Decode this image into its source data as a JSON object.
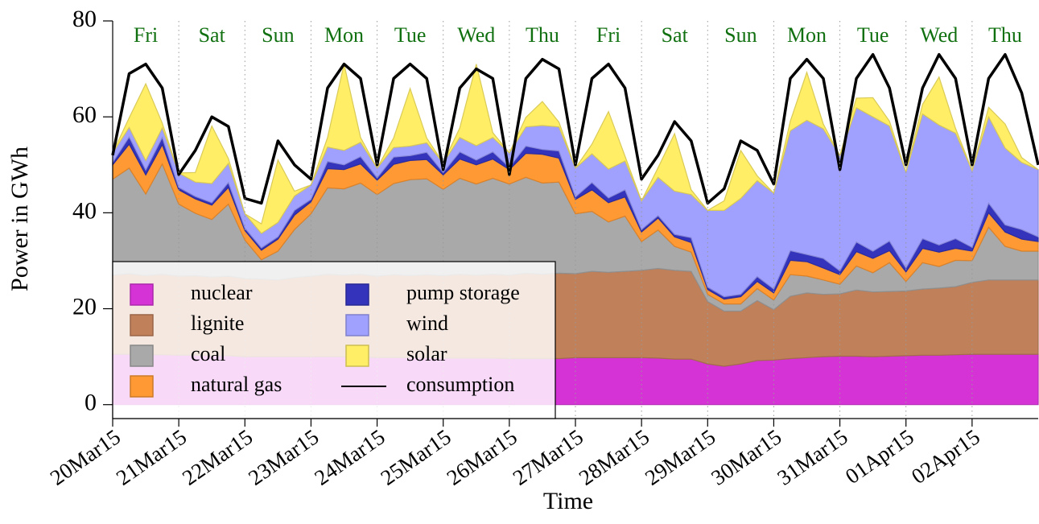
{
  "chart_data": {
    "type": "stacked_area",
    "xlabel": "Time",
    "ylabel": "Power in GWh",
    "day_labels": [
      "Fri",
      "Sat",
      "Sun",
      "Mon",
      "Tue",
      "Wed",
      "Thu",
      "Fri",
      "Sat",
      "Sun",
      "Mon",
      "Tue",
      "Wed",
      "Thu"
    ],
    "x": [
      0,
      0.25,
      0.5,
      0.75,
      1,
      1.25,
      1.5,
      1.75,
      2,
      2.25,
      2.5,
      2.75,
      3,
      3.25,
      3.5,
      3.75,
      4,
      4.25,
      4.5,
      4.75,
      5,
      5.25,
      5.5,
      5.75,
      6,
      6.25,
      6.5,
      6.75,
      7,
      7.25,
      7.5,
      7.75,
      8,
      8.25,
      8.5,
      8.75,
      9,
      9.25,
      9.5,
      9.75,
      10,
      10.25,
      10.5,
      10.75,
      11,
      11.25,
      11.5,
      11.75,
      12,
      12.25,
      12.5,
      12.75,
      13,
      13.25,
      13.5,
      13.75,
      14
    ],
    "xlim": [
      0,
      14
    ],
    "xticks": [
      {
        "value": 0,
        "label": "20Mar15"
      },
      {
        "value": 1,
        "label": "21Mar15"
      },
      {
        "value": 2,
        "label": "22Mar15"
      },
      {
        "value": 3,
        "label": "23Mar15"
      },
      {
        "value": 4,
        "label": "24Mar15"
      },
      {
        "value": 5,
        "label": "25Mar15"
      },
      {
        "value": 6,
        "label": "26Mar15"
      },
      {
        "value": 7,
        "label": "27Mar15"
      },
      {
        "value": 8,
        "label": "28Mar15"
      },
      {
        "value": 9,
        "label": "29Mar15"
      },
      {
        "value": 10,
        "label": "30Mar15"
      },
      {
        "value": 11,
        "label": "31Mar15"
      },
      {
        "value": 12,
        "label": "01Apr15"
      },
      {
        "value": 13,
        "label": "02Apr15"
      }
    ],
    "ylim": [
      -2.9,
      80
    ],
    "yticks": [
      0,
      20,
      40,
      60,
      80
    ],
    "grid": true,
    "legend_position": "lower left",
    "series": [
      {
        "name": "nuclear",
        "color": "#d633d6",
        "values": [
          10.5,
          10.5,
          10.4,
          10.4,
          10.3,
          10.3,
          10.2,
          10.2,
          10.0,
          10.0,
          10.0,
          10.0,
          10.0,
          10.0,
          10.0,
          10.0,
          9.8,
          9.8,
          9.8,
          9.8,
          9.7,
          9.7,
          9.7,
          9.7,
          9.6,
          9.6,
          9.6,
          9.6,
          9.8,
          9.8,
          9.8,
          9.8,
          9.8,
          9.7,
          9.5,
          9.5,
          8.5,
          8.0,
          8.5,
          9.2,
          9.3,
          9.6,
          9.8,
          10.0,
          10.1,
          10.1,
          10.0,
          10.1,
          10.2,
          10.3,
          10.3,
          10.4,
          10.5,
          10.5,
          10.5,
          10.5,
          10.5
        ]
      },
      {
        "name": "lignite",
        "color": "#c0805a",
        "values": [
          16.5,
          16.8,
          16.5,
          16.8,
          16.5,
          16.6,
          16.4,
          16.6,
          16.3,
          16.2,
          16.0,
          16.5,
          16.8,
          17.2,
          17.0,
          17.2,
          17.0,
          17.3,
          17.1,
          17.3,
          17.2,
          17.5,
          17.3,
          17.5,
          17.4,
          17.8,
          17.6,
          17.8,
          17.5,
          18.0,
          17.8,
          18.0,
          18.2,
          18.7,
          18.5,
          18.3,
          13.0,
          11.5,
          11.0,
          12.5,
          10.5,
          13.0,
          13.5,
          13.0,
          13.0,
          13.8,
          13.5,
          13.5,
          13.5,
          13.8,
          14.0,
          14.2,
          15.0,
          15.5,
          15.5,
          15.5,
          15.5
        ]
      },
      {
        "name": "coal",
        "color": "#a9a9a9",
        "values": [
          20,
          22,
          17,
          23,
          15,
          13,
          12,
          15,
          8,
          4,
          6,
          10,
          13,
          18,
          18,
          19,
          17,
          19,
          20,
          20,
          18,
          20,
          19,
          20,
          19,
          20,
          19,
          19,
          12.5,
          12.5,
          10.5,
          11.5,
          6,
          8,
          5,
          4,
          1.5,
          1.5,
          1.5,
          2.5,
          2,
          4.5,
          3.5,
          3,
          2,
          5,
          4,
          6,
          2,
          5.5,
          4.5,
          5.5,
          4.5,
          11,
          7,
          6,
          6
        ]
      },
      {
        "name": "natural gas",
        "color": "#ff9933",
        "values": [
          3,
          5,
          4,
          4,
          3,
          3,
          3,
          3.5,
          2,
          2,
          2.5,
          3,
          2.5,
          4,
          4,
          4,
          3,
          4,
          4,
          4,
          3,
          4,
          4,
          4,
          3,
          5,
          6,
          5,
          3,
          4.5,
          4,
          4,
          2,
          2.5,
          2,
          2,
          1,
          1,
          1.5,
          1.5,
          1.5,
          3,
          3,
          2.5,
          2,
          3,
          3,
          2.5,
          2,
          3,
          3,
          2.5,
          2,
          3,
          3,
          2.5,
          2
        ]
      },
      {
        "name": "pump storage",
        "color": "#3333bb",
        "values": [
          0.5,
          1.5,
          1,
          1.5,
          0.5,
          0.5,
          0.5,
          1,
          0.5,
          0.5,
          0.5,
          1,
          0.5,
          1.5,
          1,
          1.5,
          0.5,
          1.5,
          1,
          1.5,
          0.5,
          1.5,
          1,
          1.5,
          0.5,
          1.5,
          1,
          1.5,
          0.5,
          1.5,
          1,
          1.5,
          0.5,
          0.5,
          0.5,
          1,
          0.5,
          0.5,
          0.5,
          1,
          0.8,
          2,
          1.5,
          2,
          0.8,
          2,
          1.5,
          2,
          0.8,
          2,
          1.5,
          2,
          0.8,
          2,
          1.5,
          2,
          1
        ]
      },
      {
        "name": "wind",
        "color": "#a0a0ff",
        "values": [
          2,
          2,
          2,
          2,
          3,
          3,
          4,
          4,
          3,
          3,
          3,
          3,
          3,
          3,
          3,
          3,
          2,
          2,
          2,
          2,
          2,
          3,
          3,
          3,
          3,
          4,
          5,
          5,
          6,
          6,
          6,
          6,
          6,
          8,
          9,
          9,
          16,
          18,
          20,
          20,
          20,
          25,
          28,
          27,
          24,
          28,
          28,
          24,
          20,
          26,
          25,
          22,
          16,
          18,
          16,
          14,
          14
        ]
      },
      {
        "name": "solar",
        "color": "#ffee66",
        "values": [
          0,
          2,
          16,
          1,
          0,
          2,
          12,
          1,
          0,
          2,
          13,
          1,
          0,
          2,
          18,
          1,
          0,
          2,
          12,
          1,
          0,
          2,
          17,
          1,
          0,
          2,
          5,
          1,
          0,
          2,
          12,
          1,
          0,
          2,
          12,
          1,
          0,
          2,
          10,
          1,
          0,
          2,
          10,
          1,
          0,
          2,
          4,
          1,
          0,
          2,
          10,
          1,
          0,
          2,
          5,
          1,
          0
        ]
      }
    ],
    "line": {
      "name": "consumption",
      "color": "#000000",
      "values": [
        52,
        69,
        71,
        66,
        48,
        53,
        60,
        58,
        43,
        42,
        55,
        50,
        47,
        66,
        71,
        68,
        50,
        68,
        71,
        68,
        49,
        66,
        70,
        68,
        48,
        68,
        72,
        70,
        50,
        68,
        71,
        66,
        47,
        52,
        59,
        55,
        42,
        45,
        55,
        53,
        46,
        68,
        72,
        68,
        49,
        68,
        73,
        66,
        50,
        66,
        73,
        68,
        50,
        68,
        73,
        65,
        50
      ]
    }
  }
}
